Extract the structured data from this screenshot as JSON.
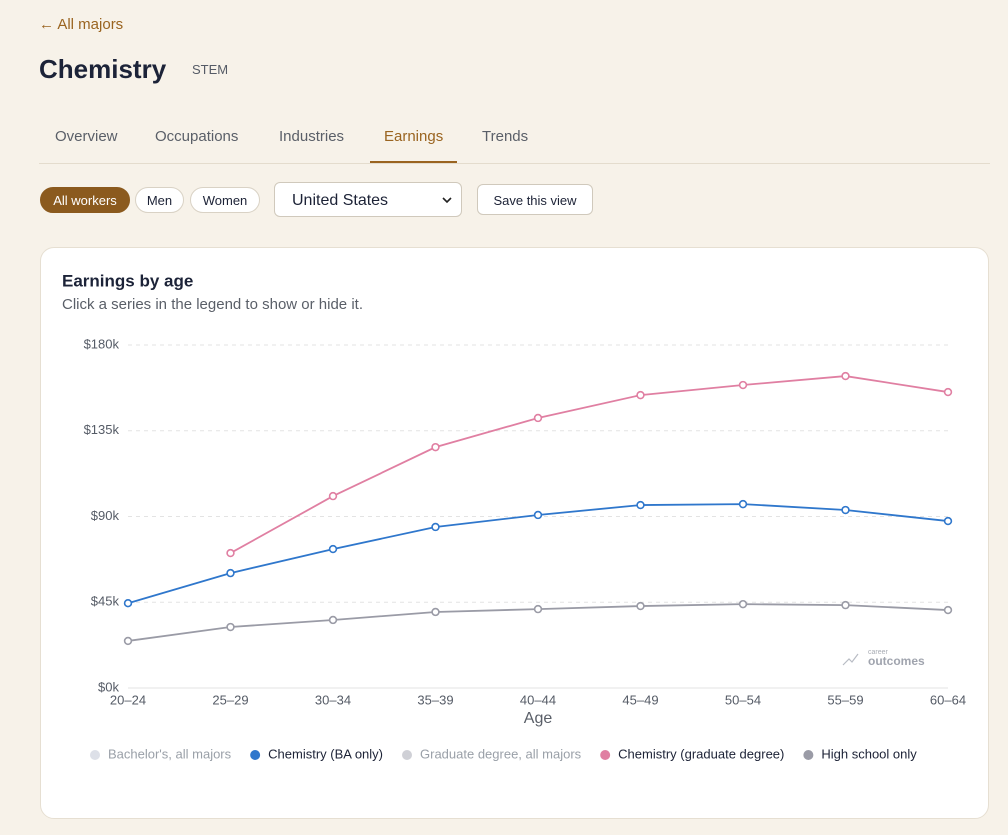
{
  "nav": {
    "back": "← All majors"
  },
  "header": {
    "title": "Chemistry",
    "tag": "STEM"
  },
  "tabs": {
    "items": [
      "Overview",
      "Occupations",
      "Industries",
      "Earnings",
      "Trends"
    ],
    "active": 3
  },
  "filters": {
    "groups": [
      "All workers",
      "Men",
      "Women"
    ],
    "active": 0,
    "region": "United States",
    "save": "Save this view"
  },
  "chart_data": {
    "type": "line",
    "title": "Earnings by age",
    "subtitle": "Click a series in the legend to show or hide it.",
    "x_label": "Age",
    "categories": [
      "20–24",
      "25–29",
      "30–34",
      "35–39",
      "40–44",
      "45–49",
      "50–54",
      "55–59",
      "60–64"
    ],
    "series": [
      {
        "name": "Bachelor's, all majors",
        "color": "#dde0e8",
        "hidden": true,
        "values": [
          null,
          null,
          null,
          null,
          null,
          null,
          null,
          null,
          null
        ]
      },
      {
        "name": "Chemistry (BA only)",
        "color": "#2f77cc",
        "values": [
          44.5,
          60.3,
          72.9,
          84.5,
          90.8,
          96,
          96.5,
          93.4,
          87.6
        ]
      },
      {
        "name": "Graduate degree, all majors",
        "color": "#cfd0d6",
        "hidden": true,
        "values": [
          null,
          null,
          null,
          null,
          null,
          null,
          null,
          null,
          null
        ]
      },
      {
        "name": "Chemistry (graduate degree)",
        "color": "#e07fa2",
        "values": [
          null,
          70.8,
          100.7,
          126.4,
          141.7,
          153.7,
          159,
          163.7,
          155.3
        ]
      },
      {
        "name": "High school only",
        "color": "#9a9ba6",
        "values": [
          24.7,
          32,
          35.7,
          39.9,
          41.4,
          43,
          44,
          43.5,
          40.9
        ]
      }
    ],
    "ylim": [
      0,
      180
    ],
    "yticks": [
      {
        "value": 0,
        "label": "$0k"
      },
      {
        "value": 45,
        "label": "$45k"
      },
      {
        "value": 90,
        "label": "$90k"
      },
      {
        "value": 135,
        "label": "$135k"
      },
      {
        "value": 180,
        "label": "$180k"
      }
    ],
    "grid": true,
    "watermark": [
      "career",
      "outcomes"
    ]
  }
}
